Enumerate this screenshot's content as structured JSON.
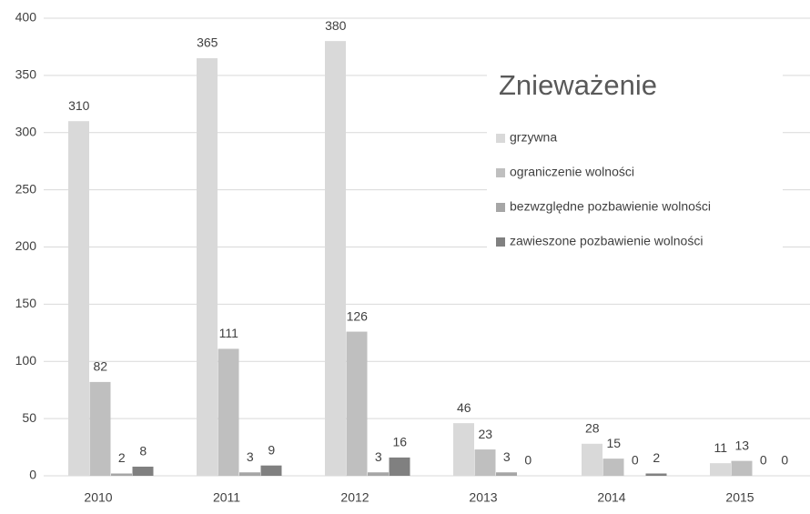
{
  "chart_data": {
    "type": "bar",
    "title": "Znieważenie",
    "categories": [
      "2010",
      "2011",
      "2012",
      "2013",
      "2014",
      "2015"
    ],
    "series": [
      {
        "name": "grzywna",
        "color": "#d9d9d9",
        "values": [
          310,
          365,
          380,
          46,
          28,
          11
        ]
      },
      {
        "name": "ograniczenie wolności",
        "color": "#bfbfbf",
        "values": [
          82,
          111,
          126,
          23,
          15,
          13
        ]
      },
      {
        "name": "bezwzględne pozbawienie wolności",
        "color": "#a6a6a6",
        "values": [
          2,
          3,
          3,
          3,
          0,
          0
        ]
      },
      {
        "name": "zawieszone pozbawienie wolności",
        "color": "#808080",
        "values": [
          8,
          9,
          16,
          0,
          2,
          0
        ]
      }
    ],
    "ylim": [
      0,
      400
    ],
    "yticks": [
      0,
      50,
      100,
      150,
      200,
      250,
      300,
      350,
      400
    ],
    "grid": true,
    "legend": "upper right"
  }
}
